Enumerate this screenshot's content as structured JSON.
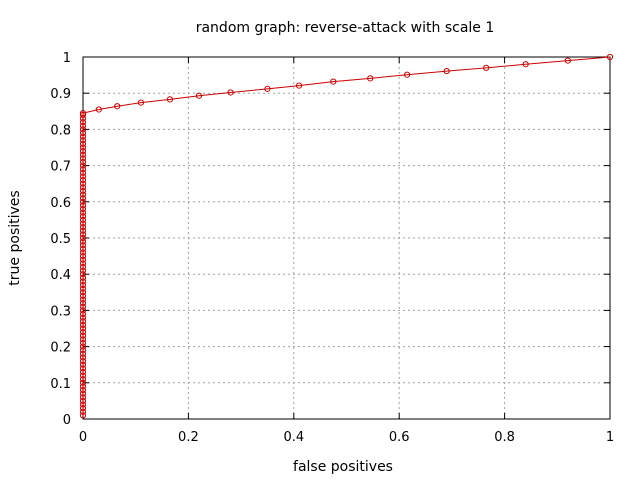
{
  "chart_data": {
    "type": "line",
    "title": "random graph: reverse-attack with scale 1",
    "xlabel": "false positives",
    "ylabel": "true positives",
    "xlim": [
      0,
      1
    ],
    "ylim": [
      0,
      1
    ],
    "grid": true,
    "legend": "none",
    "x_ticks": [
      "0",
      "0.2",
      "0.4",
      "0.6",
      "0.8",
      "1"
    ],
    "y_ticks": [
      "0",
      "0.1",
      "0.2",
      "0.3",
      "0.4",
      "0.5",
      "0.6",
      "0.7",
      "0.8",
      "0.9",
      "1"
    ],
    "line_color": "#cc0000",
    "series": [
      {
        "values": [
          [
            0,
            0.01
          ],
          [
            0,
            0.02
          ],
          [
            0,
            0.03
          ],
          [
            0,
            0.04
          ],
          [
            0,
            0.05
          ],
          [
            0,
            0.06
          ],
          [
            0,
            0.07
          ],
          [
            0,
            0.08
          ],
          [
            0,
            0.09
          ],
          [
            0,
            0.1
          ],
          [
            0,
            0.11
          ],
          [
            0,
            0.12
          ],
          [
            0,
            0.13
          ],
          [
            0,
            0.14
          ],
          [
            0,
            0.15
          ],
          [
            0,
            0.16
          ],
          [
            0,
            0.17
          ],
          [
            0,
            0.18
          ],
          [
            0,
            0.19
          ],
          [
            0,
            0.2
          ],
          [
            0,
            0.21
          ],
          [
            0,
            0.22
          ],
          [
            0,
            0.23
          ],
          [
            0,
            0.24
          ],
          [
            0,
            0.25
          ],
          [
            0,
            0.26
          ],
          [
            0,
            0.27
          ],
          [
            0,
            0.28
          ],
          [
            0,
            0.29
          ],
          [
            0,
            0.3
          ],
          [
            0,
            0.31
          ],
          [
            0,
            0.32
          ],
          [
            0,
            0.33
          ],
          [
            0,
            0.34
          ],
          [
            0,
            0.35
          ],
          [
            0,
            0.36
          ],
          [
            0,
            0.37
          ],
          [
            0,
            0.38
          ],
          [
            0,
            0.39
          ],
          [
            0,
            0.4
          ],
          [
            0,
            0.41
          ],
          [
            0,
            0.42
          ],
          [
            0,
            0.43
          ],
          [
            0,
            0.44
          ],
          [
            0,
            0.45
          ],
          [
            0,
            0.46
          ],
          [
            0,
            0.47
          ],
          [
            0,
            0.48
          ],
          [
            0,
            0.49
          ],
          [
            0,
            0.5
          ],
          [
            0,
            0.51
          ],
          [
            0,
            0.52
          ],
          [
            0,
            0.53
          ],
          [
            0,
            0.54
          ],
          [
            0,
            0.55
          ],
          [
            0,
            0.56
          ],
          [
            0,
            0.57
          ],
          [
            0,
            0.58
          ],
          [
            0,
            0.59
          ],
          [
            0,
            0.6
          ],
          [
            0,
            0.61
          ],
          [
            0,
            0.62
          ],
          [
            0,
            0.63
          ],
          [
            0,
            0.64
          ],
          [
            0,
            0.65
          ],
          [
            0,
            0.66
          ],
          [
            0,
            0.67
          ],
          [
            0,
            0.68
          ],
          [
            0,
            0.69
          ],
          [
            0,
            0.7
          ],
          [
            0,
            0.71
          ],
          [
            0,
            0.72
          ],
          [
            0,
            0.73
          ],
          [
            0,
            0.74
          ],
          [
            0,
            0.75
          ],
          [
            0,
            0.76
          ],
          [
            0,
            0.77
          ],
          [
            0,
            0.78
          ],
          [
            0,
            0.79
          ],
          [
            0,
            0.8
          ],
          [
            0,
            0.81
          ],
          [
            0,
            0.82
          ],
          [
            0,
            0.83
          ],
          [
            0,
            0.84
          ],
          [
            0,
            0.845
          ],
          [
            0.03,
            0.855
          ],
          [
            0.065,
            0.864
          ],
          [
            0.11,
            0.874
          ],
          [
            0.165,
            0.883
          ],
          [
            0.22,
            0.893
          ],
          [
            0.28,
            0.902
          ],
          [
            0.35,
            0.912
          ],
          [
            0.41,
            0.921
          ],
          [
            0.475,
            0.932
          ],
          [
            0.545,
            0.941
          ],
          [
            0.615,
            0.951
          ],
          [
            0.69,
            0.961
          ],
          [
            0.765,
            0.97
          ],
          [
            0.84,
            0.98
          ],
          [
            0.92,
            0.99
          ],
          [
            1.0,
            1.0
          ]
        ]
      }
    ]
  }
}
